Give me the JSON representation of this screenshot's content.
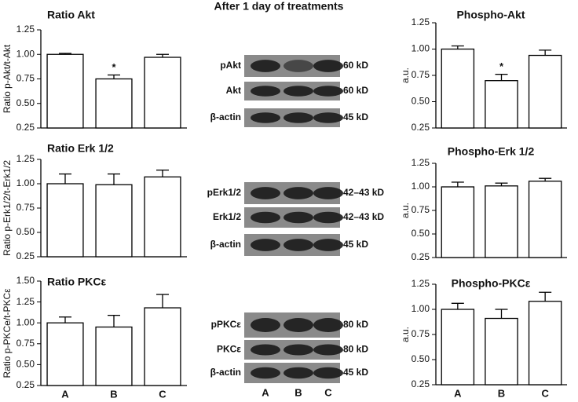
{
  "chart_data": [
    {
      "type": "bar",
      "title": "Ratio Akt",
      "ylabel": "Ratio p-Akt/t-Akt",
      "categories": [
        null,
        null,
        null
      ],
      "values": [
        1.0,
        0.75,
        0.97
      ],
      "errors": [
        0.01,
        0.04,
        0.03
      ],
      "annotations": [
        null,
        "*",
        null
      ],
      "ylim": [
        0.25,
        1.25
      ],
      "yticks": [
        0.25,
        {
          "value": 0.5,
          "label": "0.50"
        },
        0.75,
        {
          "value": 1,
          "label": "1.00"
        },
        1.25
      ],
      "color": "#ffffff"
    },
    {
      "type": "bar",
      "title": "Ratio Erk 1/2",
      "ylabel": "Ratio p-Erk1/2/t-Erk1/2",
      "categories": [
        null,
        null,
        null
      ],
      "values": [
        1.0,
        0.99,
        1.07
      ],
      "errors": [
        0.1,
        0.11,
        0.07
      ],
      "annotations": [
        null,
        null,
        null
      ],
      "ylim": [
        0.25,
        1.25
      ],
      "yticks": [
        0.25,
        {
          "value": 0.5,
          "label": "0.50"
        },
        0.75,
        {
          "value": 1,
          "label": "1.00"
        },
        1.25
      ],
      "color": "#ffffff"
    },
    {
      "type": "bar",
      "title": "Ratio PKCε",
      "ylabel": "Ratio p-PKCe/t-PKCε",
      "categories": [
        "A",
        "B",
        "C"
      ],
      "values": [
        1.0,
        0.95,
        1.18
      ],
      "errors": [
        0.07,
        0.14,
        0.16
      ],
      "annotations": [
        null,
        null,
        null
      ],
      "ylim": [
        0.25,
        1.5
      ],
      "yticks": [
        0.25,
        {
          "value": 0.5,
          "label": "0.50"
        },
        0.75,
        {
          "value": 1,
          "label": "1.00"
        },
        1.25,
        {
          "value": 1.5,
          "label": "1.50"
        }
      ],
      "color": "#ffffff"
    },
    {
      "type": "bar",
      "title": "Phospho-Akt",
      "ylabel": "a.u.",
      "categories": [
        null,
        null,
        null
      ],
      "values": [
        1.0,
        0.7,
        0.94
      ],
      "errors": [
        0.03,
        0.06,
        0.05
      ],
      "annotations": [
        null,
        "*",
        null
      ],
      "ylim": [
        0.25,
        1.25
      ],
      "yticks": [
        0.25,
        {
          "value": 0.5,
          "label": "0.50"
        },
        0.75,
        {
          "value": 1,
          "label": "1.00"
        },
        1.25
      ],
      "color": "#ffffff"
    },
    {
      "type": "bar",
      "title": "Phospho-Erk 1/2",
      "ylabel": "a.u.",
      "categories": [
        null,
        null,
        null
      ],
      "values": [
        1.0,
        1.01,
        1.06
      ],
      "errors": [
        0.05,
        0.03,
        0.03
      ],
      "annotations": [
        null,
        null,
        null
      ],
      "ylim": [
        0.25,
        1.25
      ],
      "yticks": [
        0.25,
        {
          "value": 0.5,
          "label": "0.50"
        },
        0.75,
        {
          "value": 1,
          "label": "1.00"
        },
        1.25
      ],
      "color": "#ffffff"
    },
    {
      "type": "bar",
      "title": "Phospho-PKCε",
      "ylabel": "a.u.",
      "categories": [
        "A",
        "B",
        "C"
      ],
      "values": [
        1.0,
        0.91,
        1.08
      ],
      "errors": [
        0.06,
        0.09,
        0.09
      ],
      "annotations": [
        null,
        null,
        null
      ],
      "ylim": [
        0.25,
        1.25
      ],
      "yticks": [
        0.25,
        {
          "value": 0.5,
          "label": "0.50"
        },
        0.75,
        {
          "value": 1,
          "label": "1.00"
        },
        1.25
      ],
      "color": "#ffffff"
    }
  ],
  "blots": {
    "title": "After 1 day of treatments",
    "groups": [
      [
        {
          "label": "pAkt",
          "size": "60 kD"
        },
        {
          "label": "Akt",
          "size": "60 kD"
        },
        {
          "label": "β-actin",
          "size": "45 kD"
        }
      ],
      [
        {
          "label": "pErk1/2",
          "size": "42–43 kD"
        },
        {
          "label": "Erk1/2",
          "size": "42–43 kD"
        },
        {
          "label": "β-actin",
          "size": "45 kD"
        }
      ],
      [
        {
          "label": "pPKCε",
          "size": "80 kD"
        },
        {
          "label": "PKCε",
          "size": "80 kD"
        },
        {
          "label": "β-actin",
          "size": "45 kD"
        }
      ]
    ],
    "lanes": [
      "A",
      "B",
      "C"
    ]
  }
}
